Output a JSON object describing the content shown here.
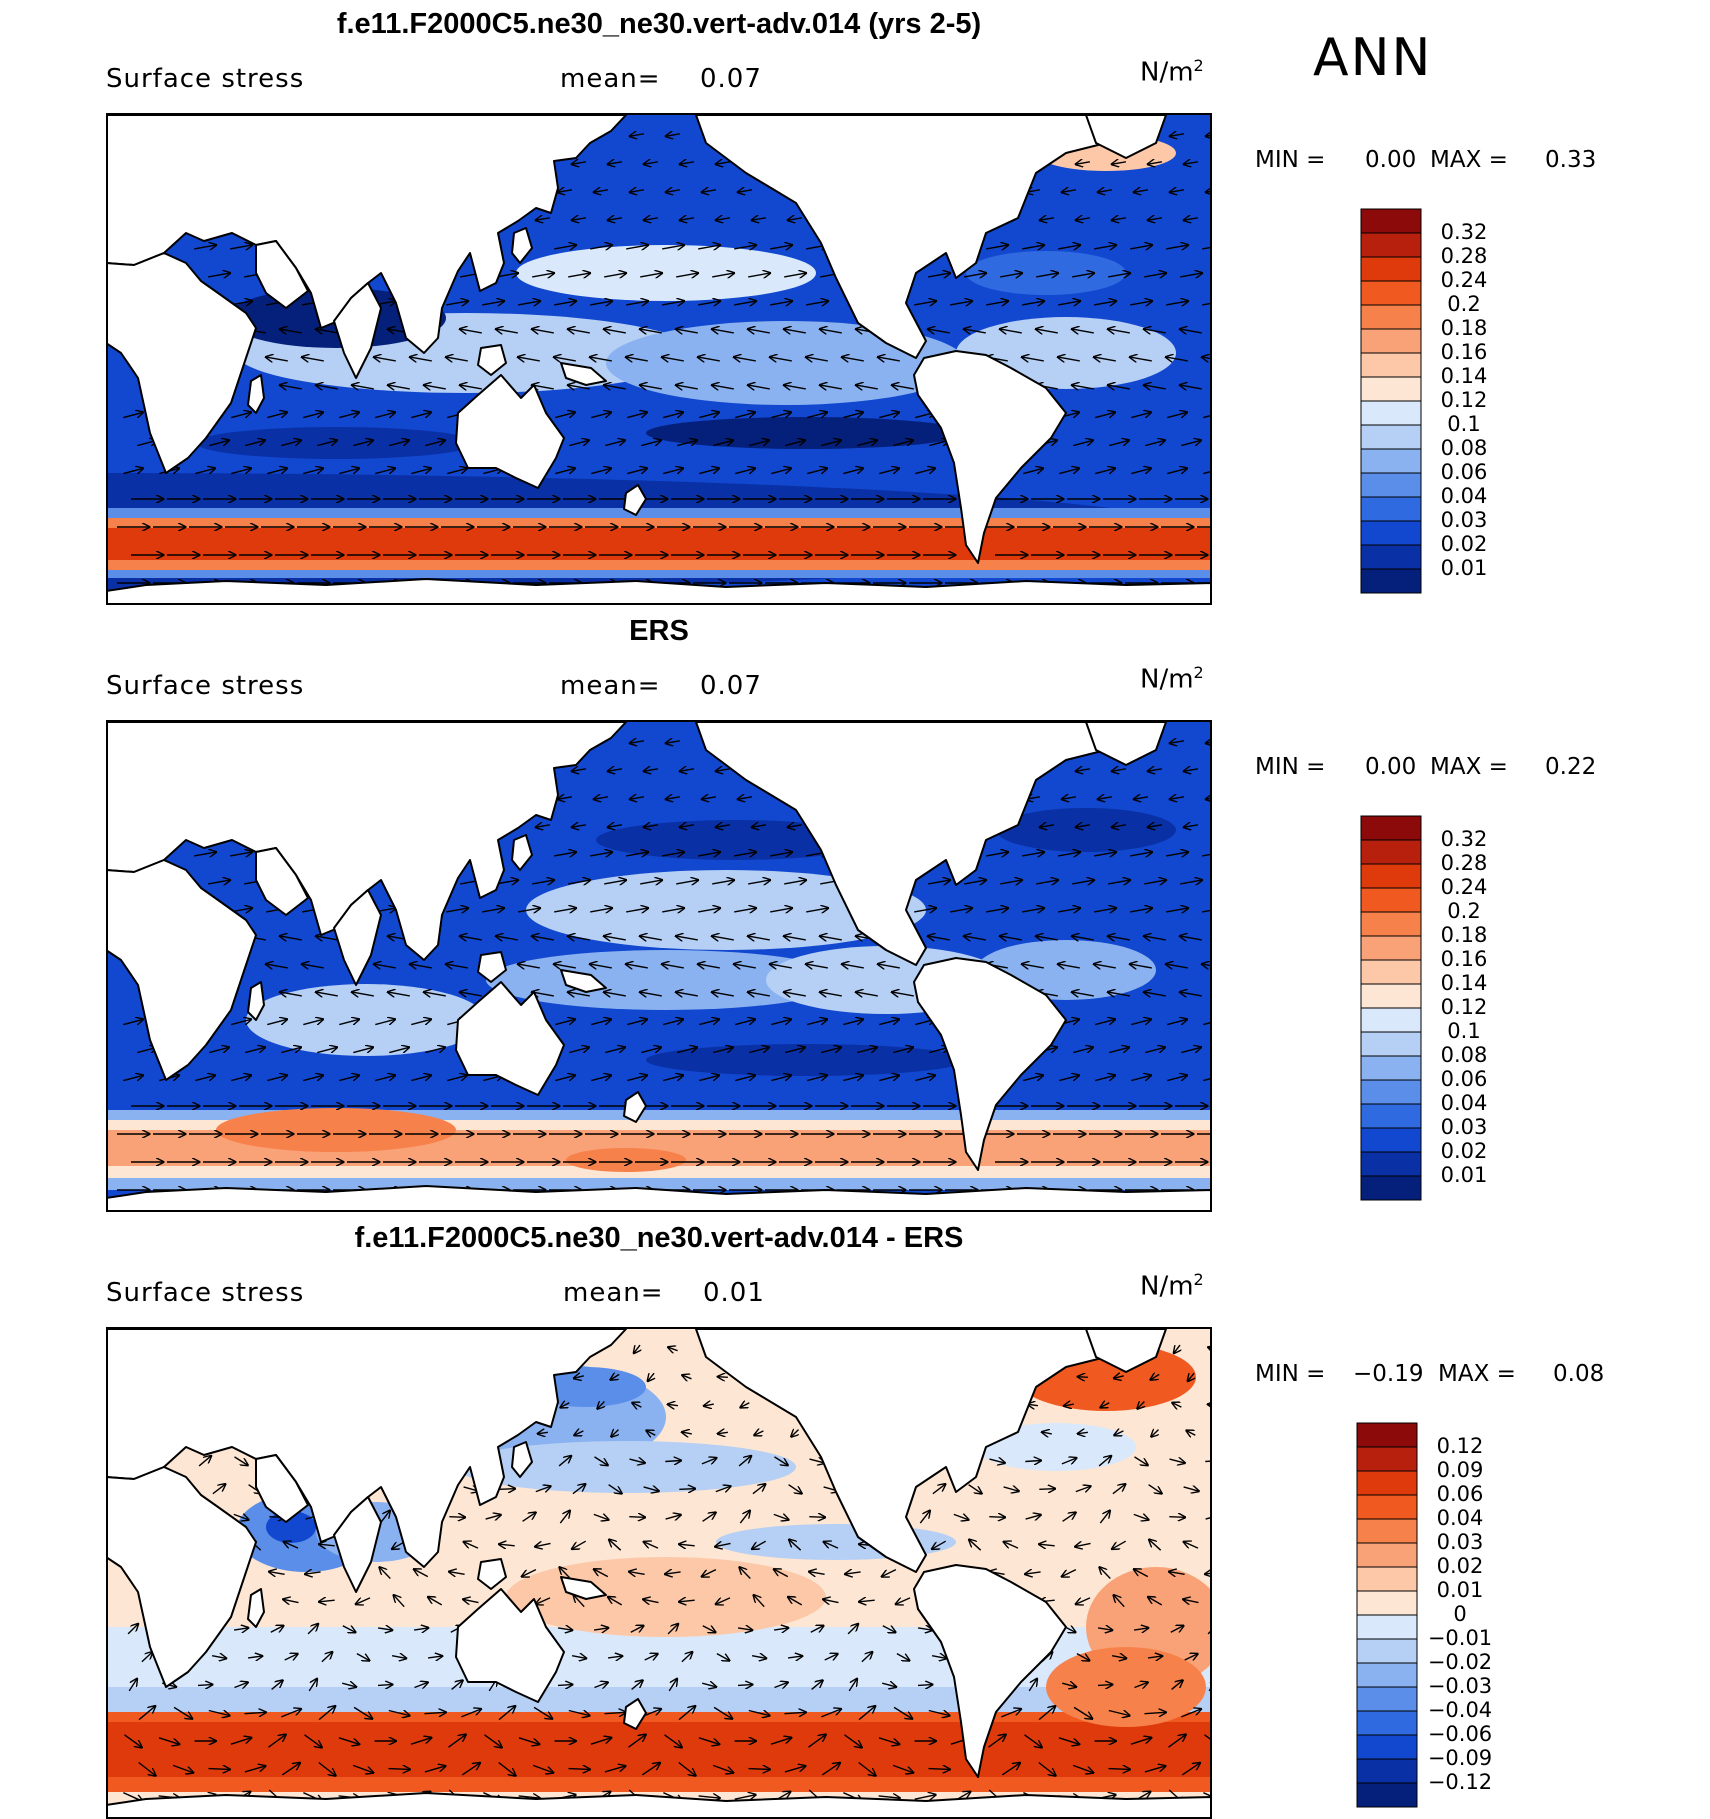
{
  "season": "ANN",
  "units": {
    "base": "N/m",
    "exp": "2"
  },
  "chart_data": [
    {
      "type": "heatmap",
      "title": "f.e11.F2000C5.ne30_ne30.vert-adv.014 (yrs 2-5)",
      "variable": "Surface stress",
      "mean_label": "mean=",
      "mean_value": "0.07",
      "min_label": "MIN =",
      "min_value": "0.00",
      "max_label": "MAX =",
      "max_value": "0.33",
      "colorbar_levels": [
        "0.32",
        "0.28",
        "0.24",
        "0.2",
        "0.18",
        "0.16",
        "0.14",
        "0.12",
        "0.1",
        "0.08",
        "0.06",
        "0.04",
        "0.03",
        "0.02",
        "0.01"
      ],
      "colorbar_colors": [
        "#8c0a0a",
        "#b8200e",
        "#de3a0c",
        "#f05a20",
        "#f7814a",
        "#faa277",
        "#fcc8a8",
        "#fde6d3",
        "#d9e8fa",
        "#b5cff5",
        "#8ab2f0",
        "#5a8ee8",
        "#2f6ae0",
        "#1248cf",
        "#0a30a6",
        "#05207a"
      ]
    },
    {
      "type": "heatmap",
      "title": "ERS",
      "variable": "Surface stress",
      "mean_label": "mean=",
      "mean_value": "0.07",
      "min_label": "MIN =",
      "min_value": "0.00",
      "max_label": "MAX =",
      "max_value": "0.22",
      "colorbar_levels": [
        "0.32",
        "0.28",
        "0.24",
        "0.2",
        "0.18",
        "0.16",
        "0.14",
        "0.12",
        "0.1",
        "0.08",
        "0.06",
        "0.04",
        "0.03",
        "0.02",
        "0.01"
      ],
      "colorbar_colors": [
        "#8c0a0a",
        "#b8200e",
        "#de3a0c",
        "#f05a20",
        "#f7814a",
        "#faa277",
        "#fcc8a8",
        "#fde6d3",
        "#d9e8fa",
        "#b5cff5",
        "#8ab2f0",
        "#5a8ee8",
        "#2f6ae0",
        "#1248cf",
        "#0a30a6",
        "#05207a"
      ]
    },
    {
      "type": "heatmap",
      "title": "f.e11.F2000C5.ne30_ne30.vert-adv.014 - ERS",
      "variable": "Surface stress",
      "mean_label": "mean=",
      "mean_value": "0.01",
      "min_label": "MIN =",
      "min_value": "−0.19",
      "max_label": "MAX =",
      "max_value": "0.08",
      "colorbar_levels": [
        "0.12",
        "0.09",
        "0.06",
        "0.04",
        "0.03",
        "0.02",
        "0.01",
        "0",
        "−0.01",
        "−0.02",
        "−0.03",
        "−0.04",
        "−0.06",
        "−0.09",
        "−0.12"
      ],
      "colorbar_colors": [
        "#8c0a0a",
        "#b8200e",
        "#de3a0c",
        "#f05a20",
        "#f7814a",
        "#faa277",
        "#fcc8a8",
        "#fde6d3",
        "#d9e8fa",
        "#b5cff5",
        "#8ab2f0",
        "#5a8ee8",
        "#2f6ae0",
        "#1248cf",
        "#0a30a6",
        "#05207a"
      ]
    }
  ]
}
